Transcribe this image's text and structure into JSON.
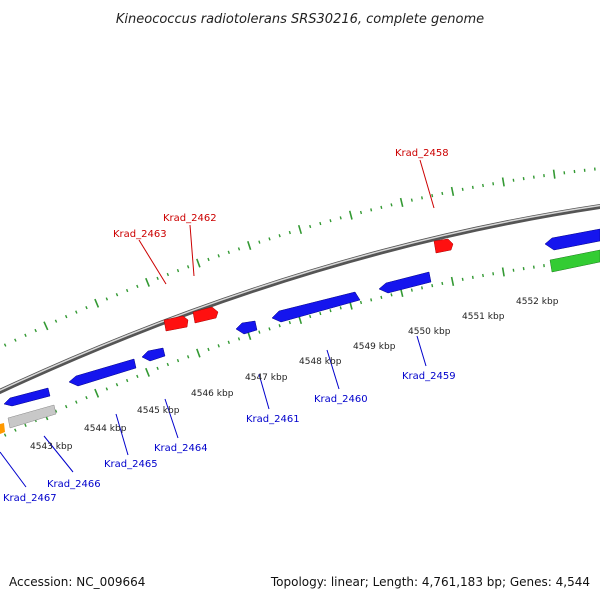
{
  "title": "Kineococcus radiotolerans SRS30216, complete genome",
  "footer": {
    "accession": "Accession: NC_009664",
    "summary": "Topology: linear; Length: 4,761,183 bp; Genes: 4,544"
  },
  "colors": {
    "forward_gene": "#ff0000",
    "reverse_gene": "#0000ff",
    "tick": "#339933",
    "backbone": "#999999",
    "forward_label": "#cc0000",
    "reverse_label": "#0000cc"
  },
  "scale_labels": [
    "4543 kbp",
    "4544 kbp",
    "4545 kbp",
    "4546 kbp",
    "4547 kbp",
    "4548 kbp",
    "4549 kbp",
    "4550 kbp",
    "4551 kbp",
    "4552 kbp"
  ],
  "forward_gene_labels": [
    "Krad_2463",
    "Krad_2462",
    "Krad_2458"
  ],
  "reverse_gene_labels": [
    "Krad_2467",
    "Krad_2466",
    "Krad_2465",
    "Krad_2464",
    "Krad_2461",
    "Krad_2460",
    "Krad_2459"
  ]
}
